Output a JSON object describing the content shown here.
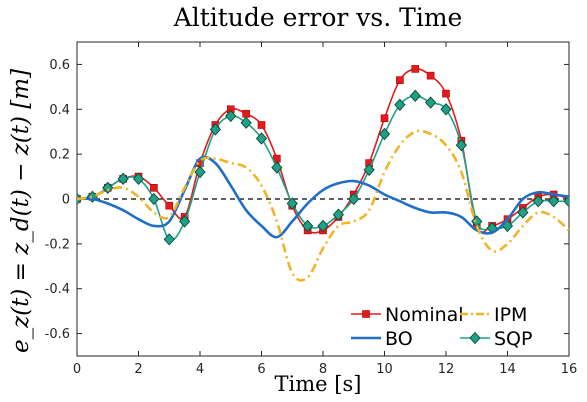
{
  "chart_data": {
    "type": "line",
    "title": "Altitude error vs. Time",
    "xlabel": "Time [s]",
    "ylabel": "e_z(t) = z_d(t) − z(t) [m]",
    "xlim": [
      0,
      16
    ],
    "ylim": [
      -0.7,
      0.7
    ],
    "xticks": [
      0,
      2,
      4,
      6,
      8,
      10,
      12,
      14,
      16
    ],
    "yticks": [
      -0.6,
      -0.4,
      -0.2,
      0,
      0.2,
      0.4,
      0.6
    ],
    "xtick_labels": [
      "0",
      "2",
      "4",
      "6",
      "8",
      "10",
      "12",
      "14",
      "16"
    ],
    "ytick_labels": [
      "-0.6",
      "-0.4",
      "-0.2",
      "0",
      "0.2",
      "0.4",
      "0.6"
    ],
    "grid": false,
    "legend_position": "bottom-right",
    "reference_line": {
      "y": 0,
      "style": "dashed",
      "color": "#000000"
    },
    "series": [
      {
        "name": "Nominal",
        "color": "#e41a1c",
        "line_style": "solid",
        "marker": "square",
        "x": [
          0,
          0.5,
          1,
          1.5,
          2,
          2.5,
          3,
          3.5,
          4,
          4.5,
          5,
          5.5,
          6,
          6.5,
          7,
          7.5,
          8,
          8.5,
          9,
          9.5,
          10,
          10.5,
          11,
          11.5,
          12,
          12.5,
          13,
          13.5,
          14,
          14.5,
          15,
          15.5,
          16
        ],
        "y": [
          0,
          0.01,
          0.05,
          0.09,
          0.1,
          0.05,
          -0.03,
          -0.08,
          0.16,
          0.33,
          0.4,
          0.38,
          0.33,
          0.18,
          -0.03,
          -0.14,
          -0.14,
          -0.08,
          0.02,
          0.16,
          0.36,
          0.53,
          0.58,
          0.55,
          0.47,
          0.26,
          -0.12,
          -0.12,
          -0.09,
          -0.04,
          0.01,
          0.02,
          0.0
        ]
      },
      {
        "name": "SQP",
        "color": "#1fa187",
        "line_style": "solid",
        "marker": "diamond",
        "x": [
          0,
          0.5,
          1,
          1.5,
          2,
          2.5,
          3,
          3.5,
          4,
          4.5,
          5,
          5.5,
          6,
          6.5,
          7,
          7.5,
          8,
          8.5,
          9,
          9.5,
          10,
          10.5,
          11,
          11.5,
          12,
          12.5,
          13,
          13.5,
          14,
          14.5,
          15,
          15.5,
          16
        ],
        "y": [
          0,
          0.01,
          0.05,
          0.09,
          0.09,
          0.0,
          -0.18,
          -0.1,
          0.12,
          0.31,
          0.37,
          0.34,
          0.27,
          0.14,
          -0.02,
          -0.12,
          -0.12,
          -0.07,
          0.0,
          0.13,
          0.29,
          0.42,
          0.46,
          0.43,
          0.4,
          0.24,
          -0.1,
          -0.13,
          -0.12,
          -0.06,
          -0.01,
          -0.01,
          -0.01
        ]
      },
      {
        "name": "BO",
        "color": "#1f6fc6",
        "line_style": "solid",
        "marker": "none",
        "x": [
          0,
          0.5,
          1,
          1.5,
          2,
          2.5,
          3,
          3.5,
          4,
          4.5,
          5,
          5.5,
          6,
          6.5,
          7,
          7.5,
          8,
          8.5,
          9,
          9.5,
          10,
          10.5,
          11,
          11.5,
          12,
          12.5,
          13,
          13.5,
          14,
          14.5,
          15,
          15.5,
          16
        ],
        "y": [
          0,
          0.0,
          -0.02,
          -0.05,
          -0.09,
          -0.12,
          -0.1,
          0.04,
          0.18,
          0.16,
          0.06,
          -0.05,
          -0.12,
          -0.17,
          -0.1,
          -0.02,
          0.04,
          0.07,
          0.08,
          0.06,
          0.02,
          -0.01,
          -0.04,
          -0.06,
          -0.06,
          -0.08,
          -0.14,
          -0.15,
          -0.09,
          0.0,
          0.03,
          0.02,
          0.01
        ]
      },
      {
        "name": "IPM",
        "color": "#f0b428",
        "line_style": "dashdot",
        "marker": "none",
        "x": [
          0,
          0.5,
          1,
          1.5,
          2,
          2.5,
          3,
          3.5,
          4,
          4.5,
          5,
          5.5,
          6,
          6.5,
          7,
          7.5,
          8,
          8.5,
          9,
          9.5,
          10,
          10.5,
          11,
          11.5,
          12,
          12.5,
          13,
          13.5,
          14,
          14.5,
          15,
          15.5,
          16
        ],
        "y": [
          0,
          0.01,
          0.04,
          0.05,
          0.01,
          -0.06,
          -0.08,
          0.05,
          0.17,
          0.18,
          0.16,
          0.14,
          0.06,
          -0.1,
          -0.33,
          -0.35,
          -0.22,
          -0.12,
          -0.1,
          -0.05,
          0.12,
          0.24,
          0.3,
          0.29,
          0.24,
          0.12,
          -0.12,
          -0.23,
          -0.2,
          -0.12,
          -0.06,
          -0.08,
          -0.14
        ]
      }
    ],
    "legend": [
      {
        "name": "Nominal",
        "color": "#e41a1c",
        "line_style": "solid",
        "marker": "square"
      },
      {
        "name": "IPM",
        "color": "#f0b428",
        "line_style": "dashdot",
        "marker": "none"
      },
      {
        "name": "BO",
        "color": "#1f6fc6",
        "line_style": "solid",
        "marker": "none"
      },
      {
        "name": "SQP",
        "color": "#1fa187",
        "line_style": "solid",
        "marker": "diamond"
      }
    ]
  }
}
